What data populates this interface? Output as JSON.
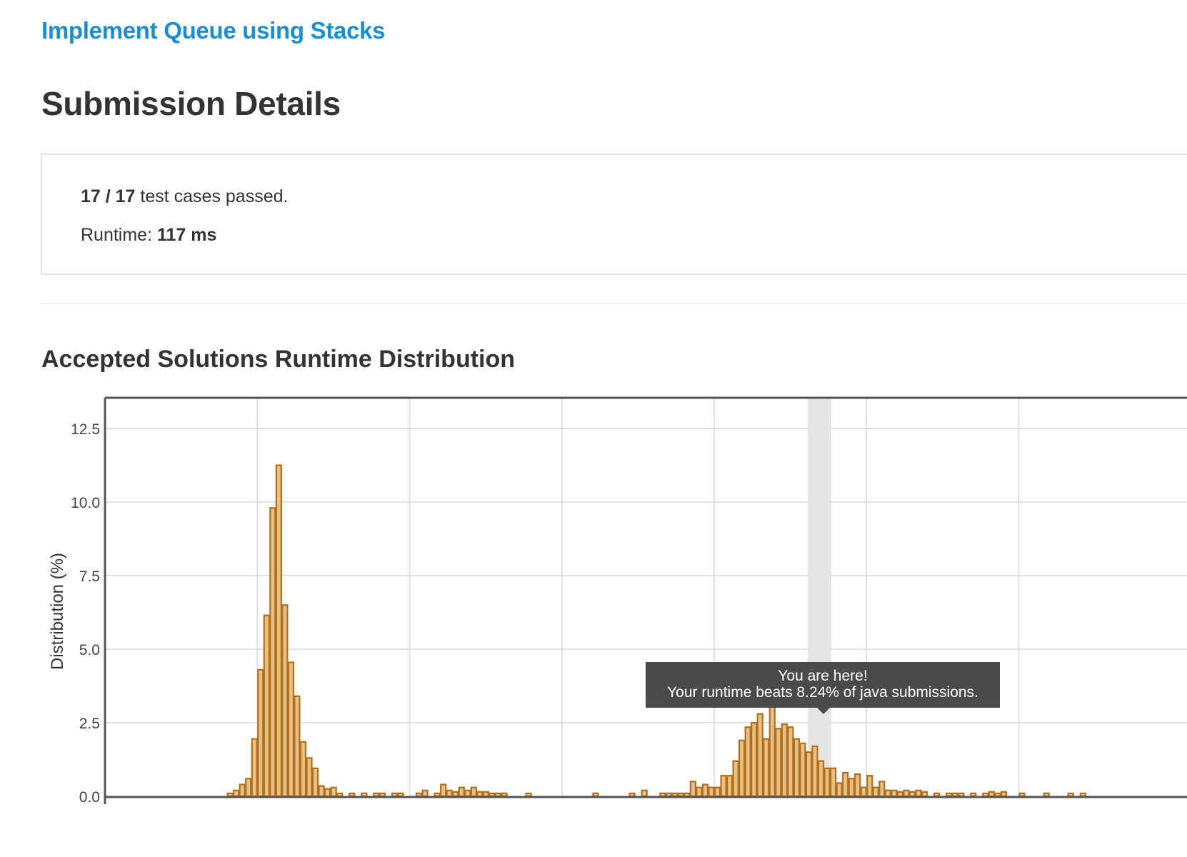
{
  "header": {
    "problem_link": "Implement Queue using Stacks",
    "page_title": "Submission Details"
  },
  "summary": {
    "passed": "17 / 17",
    "passed_suffix": " test cases passed.",
    "runtime_label": "Runtime: ",
    "runtime_value": "117 ms"
  },
  "section_title": "Accepted Solutions Runtime Distribution",
  "tooltip": {
    "line1": "You are here!",
    "line2": "Your runtime beats 8.24% of java submissions."
  },
  "colors": {
    "bar_fill": "#e8bf84",
    "bar_stroke": "#b0701f",
    "highlight_band": "#e5e5e5",
    "link": "#1a8fcf"
  },
  "chart_data": {
    "type": "bar",
    "ylabel": "Distribution (%)",
    "xlabel": "",
    "ylim": [
      0,
      13.5
    ],
    "yticks": [
      "0.0",
      "2.5",
      "5.0",
      "7.5",
      "10.0",
      "12.5"
    ],
    "ytick_values": [
      0,
      2.5,
      5,
      7.5,
      10,
      12.5
    ],
    "x_gridlines": [
      25,
      50,
      75,
      100,
      125,
      150
    ],
    "bin_width": 1,
    "highlight_bin": 117,
    "grid": true,
    "bars": [
      [
        21,
        0.1
      ],
      [
        22,
        0.2
      ],
      [
        23,
        0.4
      ],
      [
        24,
        0.6
      ],
      [
        25,
        1.95
      ],
      [
        26,
        4.3
      ],
      [
        27,
        6.15
      ],
      [
        28,
        9.8
      ],
      [
        29,
        11.25
      ],
      [
        30,
        6.5
      ],
      [
        31,
        4.55
      ],
      [
        32,
        3.4
      ],
      [
        33,
        1.85
      ],
      [
        34,
        1.3
      ],
      [
        35,
        0.95
      ],
      [
        36,
        0.35
      ],
      [
        37,
        0.25
      ],
      [
        38,
        0.3
      ],
      [
        39,
        0.1
      ],
      [
        41,
        0.1
      ],
      [
        43,
        0.1
      ],
      [
        45,
        0.1
      ],
      [
        46,
        0.1
      ],
      [
        48,
        0.1
      ],
      [
        49,
        0.1
      ],
      [
        52,
        0.1
      ],
      [
        53,
        0.2
      ],
      [
        55,
        0.1
      ],
      [
        56,
        0.4
      ],
      [
        57,
        0.2
      ],
      [
        58,
        0.15
      ],
      [
        59,
        0.3
      ],
      [
        60,
        0.2
      ],
      [
        61,
        0.3
      ],
      [
        62,
        0.15
      ],
      [
        63,
        0.15
      ],
      [
        64,
        0.1
      ],
      [
        65,
        0.1
      ],
      [
        66,
        0.1
      ],
      [
        70,
        0.1
      ],
      [
        81,
        0.1
      ],
      [
        87,
        0.1
      ],
      [
        89,
        0.2
      ],
      [
        92,
        0.1
      ],
      [
        93,
        0.1
      ],
      [
        94,
        0.1
      ],
      [
        95,
        0.1
      ],
      [
        96,
        0.1
      ],
      [
        97,
        0.5
      ],
      [
        98,
        0.3
      ],
      [
        99,
        0.4
      ],
      [
        100,
        0.3
      ],
      [
        101,
        0.3
      ],
      [
        102,
        0.7
      ],
      [
        103,
        0.7
      ],
      [
        104,
        1.2
      ],
      [
        105,
        1.9
      ],
      [
        106,
        2.35
      ],
      [
        107,
        2.5
      ],
      [
        108,
        2.8
      ],
      [
        109,
        1.95
      ],
      [
        110,
        3.25
      ],
      [
        111,
        2.3
      ],
      [
        112,
        2.45
      ],
      [
        113,
        2.35
      ],
      [
        114,
        1.95
      ],
      [
        115,
        1.8
      ],
      [
        116,
        1.5
      ],
      [
        117,
        1.7
      ],
      [
        118,
        1.2
      ],
      [
        119,
        0.95
      ],
      [
        120,
        0.95
      ],
      [
        121,
        0.45
      ],
      [
        122,
        0.8
      ],
      [
        123,
        0.6
      ],
      [
        124,
        0.75
      ],
      [
        125,
        0.3
      ],
      [
        126,
        0.7
      ],
      [
        127,
        0.3
      ],
      [
        128,
        0.5
      ],
      [
        129,
        0.2
      ],
      [
        130,
        0.2
      ],
      [
        131,
        0.15
      ],
      [
        132,
        0.2
      ],
      [
        133,
        0.15
      ],
      [
        134,
        0.2
      ],
      [
        135,
        0.15
      ],
      [
        137,
        0.1
      ],
      [
        139,
        0.1
      ],
      [
        140,
        0.1
      ],
      [
        141,
        0.1
      ],
      [
        143,
        0.1
      ],
      [
        145,
        0.1
      ],
      [
        146,
        0.15
      ],
      [
        147,
        0.1
      ],
      [
        148,
        0.15
      ],
      [
        151,
        0.1
      ],
      [
        155,
        0.1
      ],
      [
        159,
        0.1
      ],
      [
        161,
        0.1
      ]
    ]
  }
}
